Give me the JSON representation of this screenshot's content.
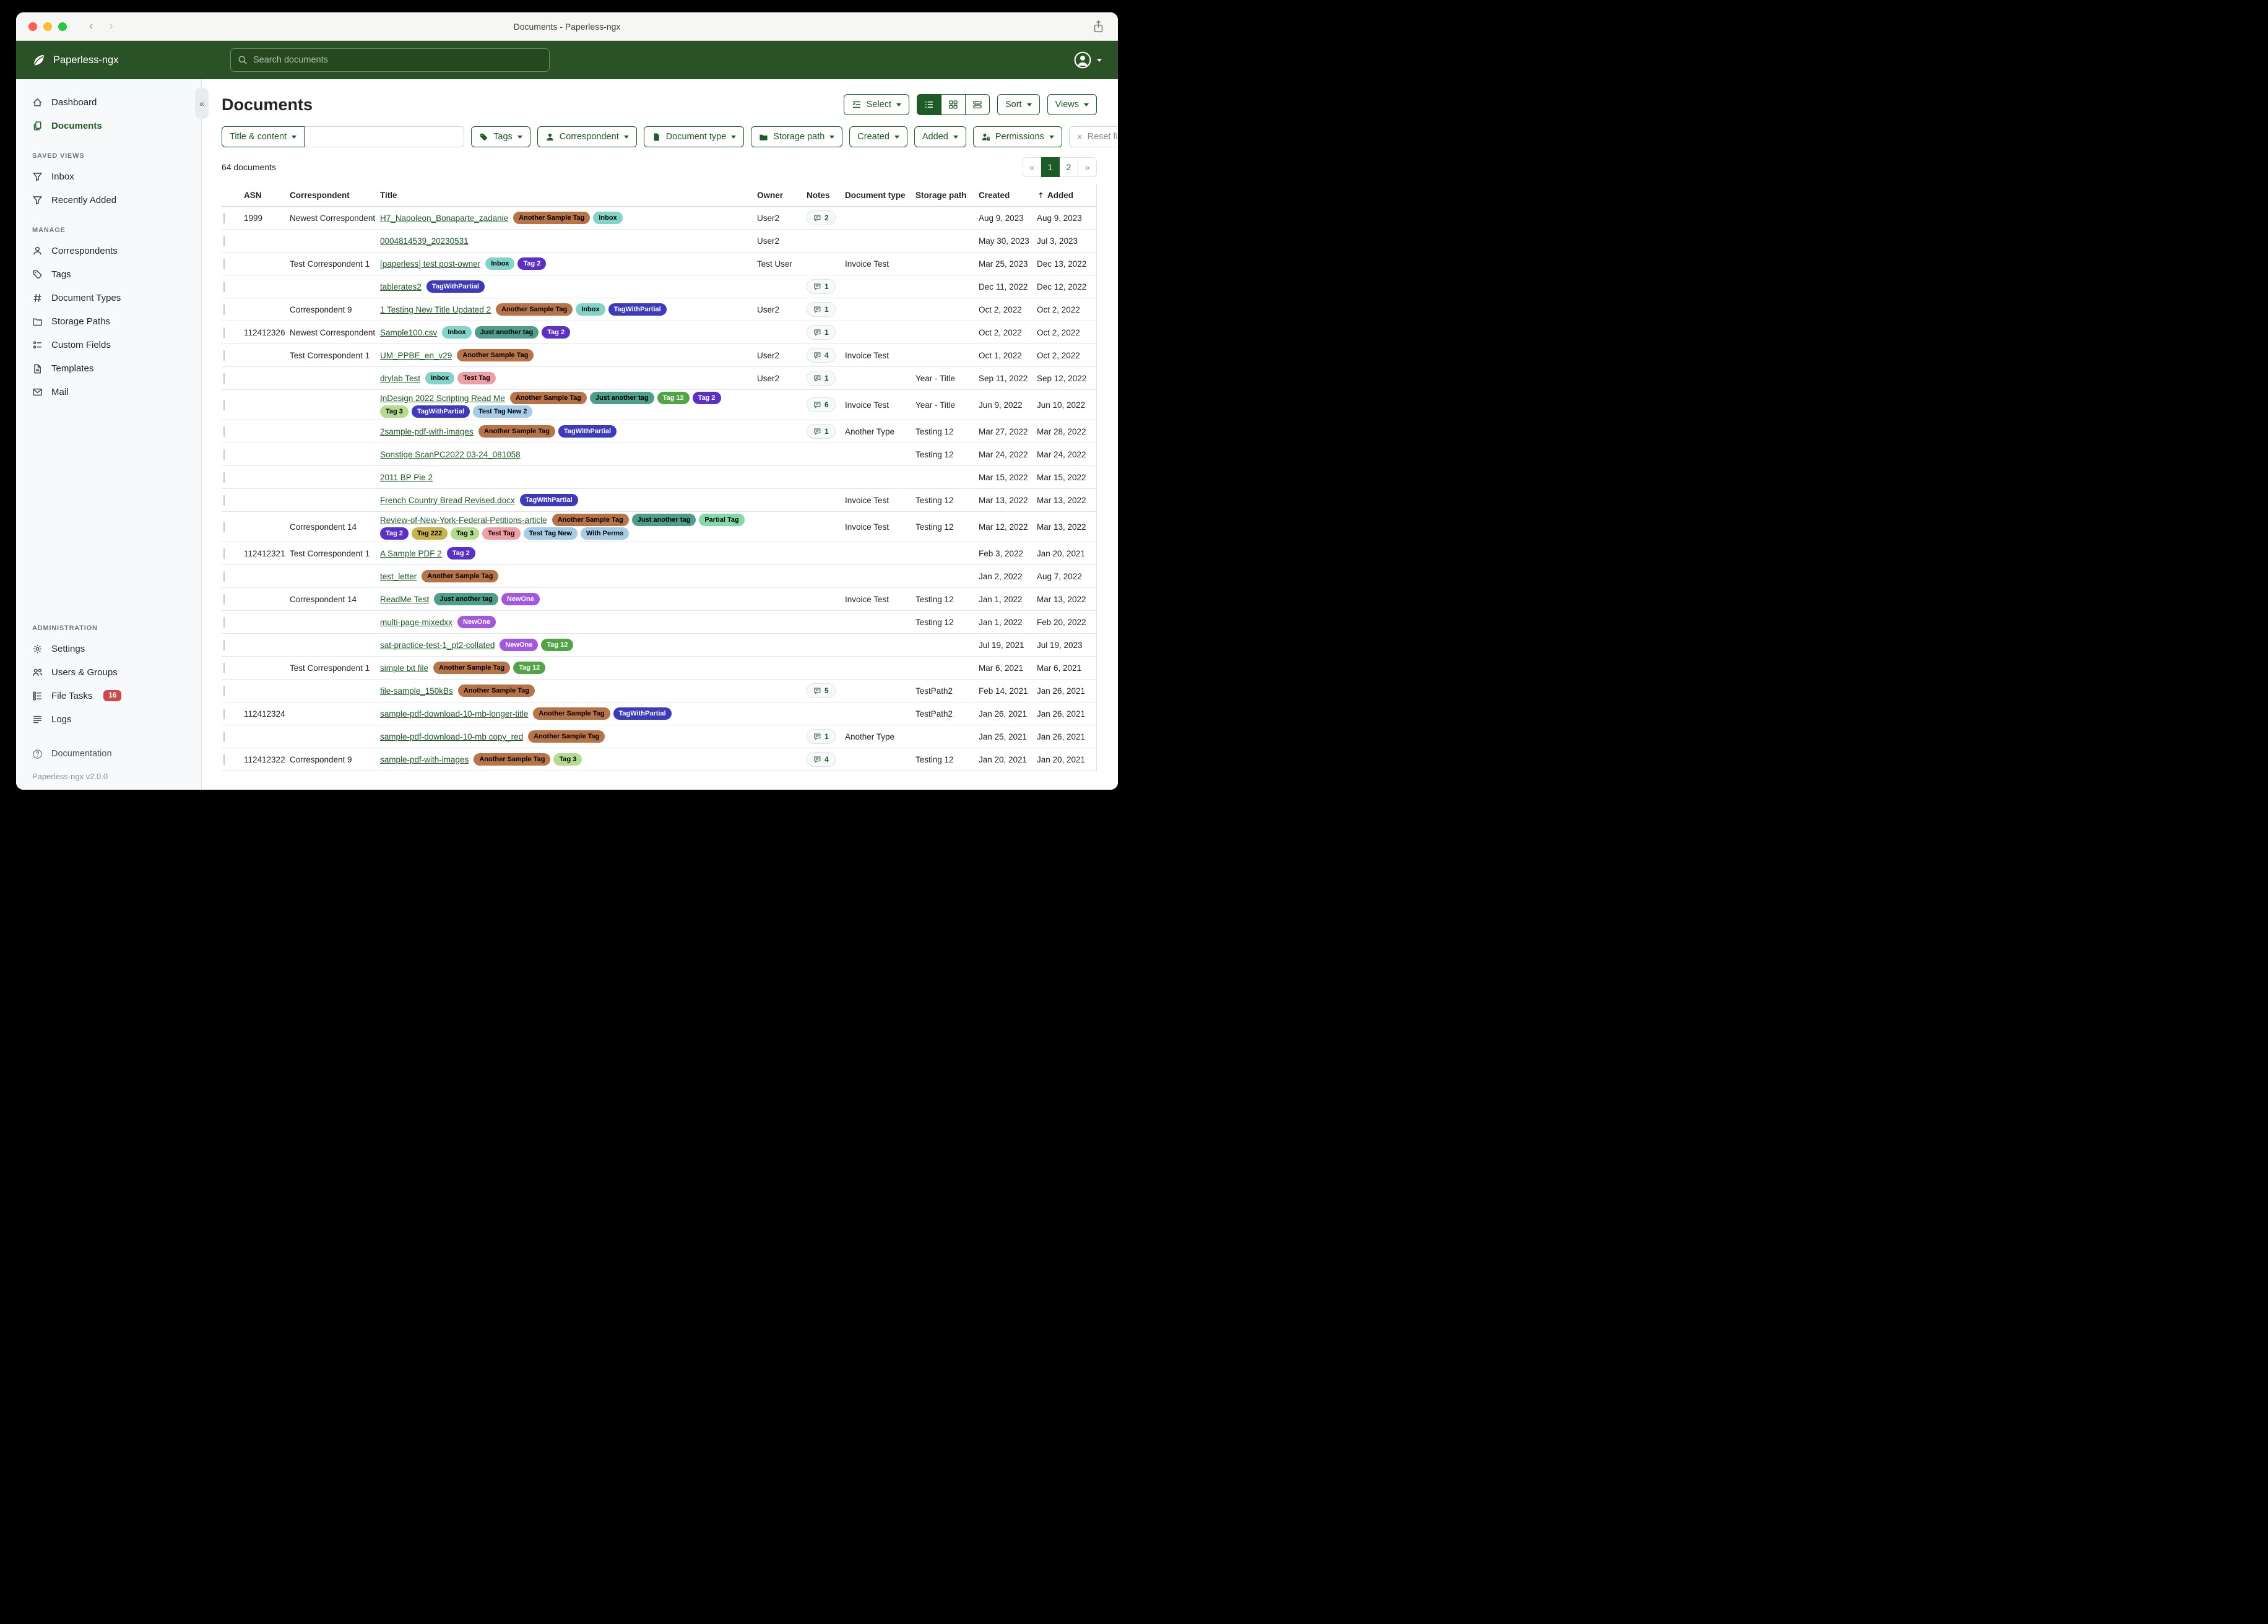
{
  "colors": {
    "accent": "#1d5b27",
    "navbar": "#2b5226",
    "danger": "#ce4a4a"
  },
  "titlebar": {
    "title": "Documents - Paperless-ngx"
  },
  "navbar": {
    "brand": "Paperless-ngx",
    "search_placeholder": "Search documents"
  },
  "sidebar": {
    "nav": [
      {
        "label": "Dashboard",
        "icon": "house",
        "active": false
      },
      {
        "label": "Documents",
        "icon": "files",
        "active": true
      }
    ],
    "sections": [
      {
        "label": "SAVED VIEWS",
        "items": [
          {
            "label": "Inbox",
            "icon": "funnel"
          },
          {
            "label": "Recently Added",
            "icon": "funnel"
          }
        ]
      },
      {
        "label": "MANAGE",
        "items": [
          {
            "label": "Correspondents",
            "icon": "person"
          },
          {
            "label": "Tags",
            "icon": "tags"
          },
          {
            "label": "Document Types",
            "icon": "hash"
          },
          {
            "label": "Storage Paths",
            "icon": "folder"
          },
          {
            "label": "Custom Fields",
            "icon": "fields"
          },
          {
            "label": "Templates",
            "icon": "template"
          },
          {
            "label": "Mail",
            "icon": "envelope"
          }
        ]
      },
      {
        "label": "ADMINISTRATION",
        "items": [
          {
            "label": "Settings",
            "icon": "gear"
          },
          {
            "label": "Users & Groups",
            "icon": "people"
          },
          {
            "label": "File Tasks",
            "icon": "tasks",
            "badge": "16"
          },
          {
            "label": "Logs",
            "icon": "logs"
          }
        ]
      }
    ],
    "footer": {
      "documentation": "Documentation",
      "version": "Paperless-ngx v2.0.0"
    }
  },
  "page": {
    "title": "Documents"
  },
  "toolbar": {
    "select_label": "Select",
    "sort_label": "Sort",
    "views_label": "Views"
  },
  "filters": {
    "title_content_label": "Title & content",
    "search_value": "",
    "buttons": [
      {
        "label": "Tags",
        "icon": "tag-fill"
      },
      {
        "label": "Correspondent",
        "icon": "person-fill"
      },
      {
        "label": "Document type",
        "icon": "file-fill"
      },
      {
        "label": "Storage path",
        "icon": "folder-fill"
      },
      {
        "label": "Created",
        "icon": null
      },
      {
        "label": "Added",
        "icon": null
      },
      {
        "label": "Permissions",
        "icon": "person-lock"
      }
    ],
    "reset_label": "Reset filters"
  },
  "status": {
    "count": "64 documents"
  },
  "pagination": {
    "prev": "«",
    "pages": [
      {
        "label": "1",
        "active": true
      },
      {
        "label": "2",
        "active": false
      }
    ],
    "next": "»"
  },
  "table": {
    "columns": {
      "asn": "ASN",
      "correspondent": "Correspondent",
      "title": "Title",
      "owner": "Owner",
      "notes": "Notes",
      "type": "Document type",
      "path": "Storage path",
      "created": "Created",
      "added": "Added"
    },
    "sort_column": "added",
    "rows": [
      {
        "asn": "1999",
        "correspondent": "Newest Correspondent",
        "title": "H7_Napoleon_Bonaparte_zadanie",
        "tags": [
          "Another Sample Tag",
          "Inbox"
        ],
        "owner": "User2",
        "notes": "2",
        "type": "",
        "path": "",
        "created": "Aug 9, 2023",
        "added": "Aug 9, 2023"
      },
      {
        "asn": "",
        "correspondent": "",
        "title": "0004814539_20230531",
        "tags": [],
        "owner": "User2",
        "notes": "",
        "type": "",
        "path": "",
        "created": "May 30, 2023",
        "added": "Jul 3, 2023"
      },
      {
        "asn": "",
        "correspondent": "Test Correspondent 1",
        "title": "[paperless] test post-owner",
        "tags": [
          "Inbox",
          "Tag 2"
        ],
        "owner": "Test User",
        "notes": "",
        "type": "Invoice Test",
        "path": "",
        "created": "Mar 25, 2023",
        "added": "Dec 13, 2022"
      },
      {
        "asn": "",
        "correspondent": "",
        "title": "tablerates2",
        "tags": [
          "TagWithPartial"
        ],
        "owner": "",
        "notes": "1",
        "type": "",
        "path": "",
        "created": "Dec 11, 2022",
        "added": "Dec 12, 2022"
      },
      {
        "asn": "",
        "correspondent": "Correspondent 9",
        "title": "1 Testing New Title Updated 2",
        "tags": [
          "Another Sample Tag",
          "Inbox",
          "TagWithPartial"
        ],
        "owner": "User2",
        "notes": "1",
        "type": "",
        "path": "",
        "created": "Oct 2, 2022",
        "added": "Oct 2, 2022"
      },
      {
        "asn": "112412326",
        "correspondent": "Newest Correspondent",
        "title": "Sample100.csv",
        "tags": [
          "Inbox",
          "Just another tag",
          "Tag 2"
        ],
        "owner": "",
        "notes": "1",
        "type": "",
        "path": "",
        "created": "Oct 2, 2022",
        "added": "Oct 2, 2022"
      },
      {
        "asn": "",
        "correspondent": "Test Correspondent 1",
        "title": "UM_PPBE_en_v29",
        "tags": [
          "Another Sample Tag"
        ],
        "owner": "User2",
        "notes": "4",
        "type": "Invoice Test",
        "path": "",
        "created": "Oct 1, 2022",
        "added": "Oct 2, 2022"
      },
      {
        "asn": "",
        "correspondent": "",
        "title": "drylab Test",
        "tags": [
          "Inbox",
          "Test Tag"
        ],
        "owner": "User2",
        "notes": "1",
        "type": "",
        "path": "Year - Title",
        "created": "Sep 11, 2022",
        "added": "Sep 12, 2022"
      },
      {
        "asn": "",
        "correspondent": "",
        "title": "InDesign 2022 Scripting Read Me",
        "tags": [
          "Another Sample Tag",
          "Just another tag",
          "Tag 12",
          "Tag 2",
          "Tag 3",
          "TagWithPartial",
          "Test Tag New 2"
        ],
        "owner": "",
        "notes": "6",
        "type": "Invoice Test",
        "path": "Year - Title",
        "created": "Jun 9, 2022",
        "added": "Jun 10, 2022"
      },
      {
        "asn": "",
        "correspondent": "",
        "title": "2sample-pdf-with-images",
        "tags": [
          "Another Sample Tag",
          "TagWithPartial"
        ],
        "owner": "",
        "notes": "1",
        "type": "Another Type",
        "path": "Testing 12",
        "created": "Mar 27, 2022",
        "added": "Mar 28, 2022"
      },
      {
        "asn": "",
        "correspondent": "",
        "title": "Sonstige ScanPC2022 03-24_081058",
        "tags": [],
        "owner": "",
        "notes": "",
        "type": "",
        "path": "Testing 12",
        "created": "Mar 24, 2022",
        "added": "Mar 24, 2022"
      },
      {
        "asn": "",
        "correspondent": "",
        "title": "2011 BP Pie 2",
        "tags": [],
        "owner": "",
        "notes": "",
        "type": "",
        "path": "",
        "created": "Mar 15, 2022",
        "added": "Mar 15, 2022"
      },
      {
        "asn": "",
        "correspondent": "",
        "title": "French Country Bread Revised.docx",
        "tags": [
          "TagWithPartial"
        ],
        "owner": "",
        "notes": "",
        "type": "Invoice Test",
        "path": "Testing 12",
        "created": "Mar 13, 2022",
        "added": "Mar 13, 2022"
      },
      {
        "asn": "",
        "correspondent": "Correspondent 14",
        "title": "Review-of-New-York-Federal-Petitions-article",
        "tags": [
          "Another Sample Tag",
          "Just another tag",
          "Partial Tag",
          "Tag 2",
          "Tag 222",
          "Tag 3",
          "Test Tag",
          "Test Tag New",
          "With Perms"
        ],
        "owner": "",
        "notes": "",
        "type": "Invoice Test",
        "path": "Testing 12",
        "created": "Mar 12, 2022",
        "added": "Mar 13, 2022"
      },
      {
        "asn": "112412321",
        "correspondent": "Test Correspondent 1",
        "title": "A Sample PDF 2",
        "tags": [
          "Tag 2"
        ],
        "owner": "",
        "notes": "",
        "type": "",
        "path": "",
        "created": "Feb 3, 2022",
        "added": "Jan 20, 2021"
      },
      {
        "asn": "",
        "correspondent": "",
        "title": "test_letter",
        "tags": [
          "Another Sample Tag"
        ],
        "owner": "",
        "notes": "",
        "type": "",
        "path": "",
        "created": "Jan 2, 2022",
        "added": "Aug 7, 2022"
      },
      {
        "asn": "",
        "correspondent": "Correspondent 14",
        "title": "ReadMe Test",
        "tags": [
          "Just another tag",
          "NewOne"
        ],
        "owner": "",
        "notes": "",
        "type": "Invoice Test",
        "path": "Testing 12",
        "created": "Jan 1, 2022",
        "added": "Mar 13, 2022"
      },
      {
        "asn": "",
        "correspondent": "",
        "title": "multi-page-mixedxx",
        "tags": [
          "NewOne"
        ],
        "owner": "",
        "notes": "",
        "type": "",
        "path": "Testing 12",
        "created": "Jan 1, 2022",
        "added": "Feb 20, 2022"
      },
      {
        "asn": "",
        "correspondent": "",
        "title": "sat-practice-test-1_pt2-collated",
        "tags": [
          "NewOne",
          "Tag 12"
        ],
        "owner": "",
        "notes": "",
        "type": "",
        "path": "",
        "created": "Jul 19, 2021",
        "added": "Jul 19, 2023"
      },
      {
        "asn": "",
        "correspondent": "Test Correspondent 1",
        "title": "simple txt file",
        "tags": [
          "Another Sample Tag",
          "Tag 12"
        ],
        "owner": "",
        "notes": "",
        "type": "",
        "path": "",
        "created": "Mar 6, 2021",
        "added": "Mar 6, 2021"
      },
      {
        "asn": "",
        "correspondent": "",
        "title": "file-sample_150kBs",
        "tags": [
          "Another Sample Tag"
        ],
        "owner": "",
        "notes": "5",
        "type": "",
        "path": "TestPath2",
        "created": "Feb 14, 2021",
        "added": "Jan 26, 2021"
      },
      {
        "asn": "112412324",
        "correspondent": "",
        "title": "sample-pdf-download-10-mb-longer-title",
        "tags": [
          "Another Sample Tag",
          "TagWithPartial"
        ],
        "owner": "",
        "notes": "",
        "type": "",
        "path": "TestPath2",
        "created": "Jan 26, 2021",
        "added": "Jan 26, 2021"
      },
      {
        "asn": "",
        "correspondent": "",
        "title": "sample-pdf-download-10-mb copy_red",
        "tags": [
          "Another Sample Tag"
        ],
        "owner": "",
        "notes": "1",
        "type": "Another Type",
        "path": "",
        "created": "Jan 25, 2021",
        "added": "Jan 26, 2021"
      },
      {
        "asn": "112412322",
        "correspondent": "Correspondent 9",
        "title": "sample-pdf-with-images",
        "tags": [
          "Another Sample Tag",
          "Tag 3"
        ],
        "owner": "",
        "notes": "4",
        "type": "",
        "path": "Testing 12",
        "created": "Jan 20, 2021",
        "added": "Jan 20, 2021"
      }
    ]
  },
  "tag_styles": {
    "Another Sample Tag": {
      "bg": "#b87347",
      "fg": "#000000"
    },
    "Inbox": {
      "bg": "#80d4c8",
      "fg": "#000000"
    },
    "Tag 2": {
      "bg": "#5a30c9",
      "fg": "#ffffff"
    },
    "TagWithPartial": {
      "bg": "#3d3ac0",
      "fg": "#ffffff"
    },
    "Just another tag": {
      "bg": "#4d9e8a",
      "fg": "#000000"
    },
    "Test Tag": {
      "bg": "#f0a0a4",
      "fg": "#000000"
    },
    "Tag 12": {
      "bg": "#52a546",
      "fg": "#ffffff"
    },
    "Tag 3": {
      "bg": "#b3dc8e",
      "fg": "#000000"
    },
    "Test Tag New 2": {
      "bg": "#a6cde8",
      "fg": "#000000"
    },
    "Partial Tag": {
      "bg": "#82dba5",
      "fg": "#000000"
    },
    "Tag 222": {
      "bg": "#c7b34c",
      "fg": "#000000"
    },
    "Test Tag New": {
      "bg": "#a6cde8",
      "fg": "#000000"
    },
    "With Perms": {
      "bg": "#a6cde8",
      "fg": "#000000"
    },
    "NewOne": {
      "bg": "#a259e0",
      "fg": "#ffffff"
    }
  }
}
